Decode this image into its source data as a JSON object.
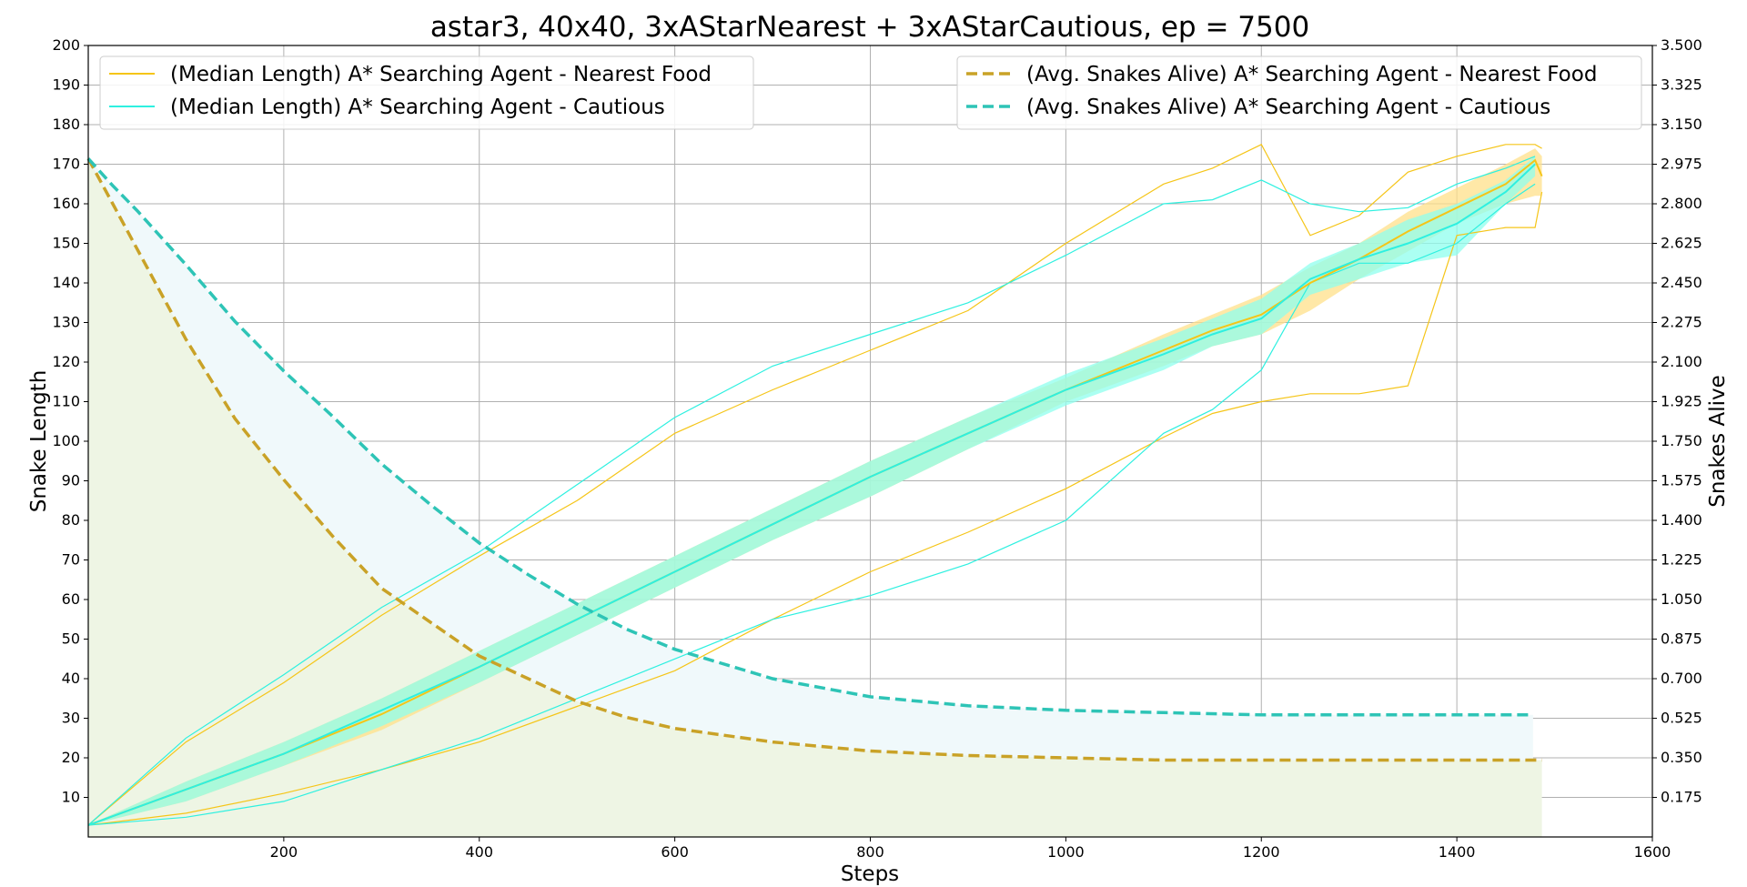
{
  "chart_data": {
    "type": "line",
    "title": "astar3, 40x40, 3xAStarNearest + 3xAStarCautious, ep = 7500",
    "xlabel": "Steps",
    "ylabel_left": "Snake Length",
    "ylabel_right": "Snakes Alive",
    "xlim": [
      0,
      1600
    ],
    "ylim_left": [
      0,
      200
    ],
    "ylim_right": [
      0,
      3.5
    ],
    "x_ticks": [
      "200",
      "400",
      "600",
      "800",
      "1000",
      "1200",
      "1400",
      "1600"
    ],
    "y_left_ticks": [
      "10",
      "20",
      "30",
      "40",
      "50",
      "60",
      "70",
      "80",
      "90",
      "100",
      "110",
      "120",
      "130",
      "140",
      "150",
      "160",
      "170",
      "180",
      "190",
      "200"
    ],
    "y_right_ticks": [
      "0.175",
      "0.350",
      "0.525",
      "0.700",
      "0.875",
      "1.050",
      "1.225",
      "1.400",
      "1.575",
      "1.750",
      "1.925",
      "2.100",
      "2.275",
      "2.450",
      "2.625",
      "2.800",
      "2.975",
      "3.150",
      "3.325",
      "3.500"
    ],
    "grid": true,
    "legend_left_position": "top-left",
    "legend_right_position": "top-right",
    "series": [
      {
        "name": "(Median Length) A* Searching Agent - Nearest Food",
        "axis": "left",
        "style": "solid",
        "color": "#f5c518",
        "band_color": "#ffe08a",
        "x": [
          0,
          100,
          200,
          300,
          400,
          500,
          600,
          700,
          800,
          900,
          1000,
          1100,
          1150,
          1200,
          1250,
          1300,
          1350,
          1400,
          1450,
          1480,
          1487
        ],
        "median": [
          3,
          12,
          21,
          31,
          43,
          55,
          67,
          79,
          91,
          102,
          113,
          123,
          128,
          132,
          140,
          146,
          153,
          159,
          165,
          171,
          167
        ],
        "q_low": [
          3,
          9,
          18,
          27,
          39,
          51,
          63,
          75,
          86,
          98,
          110,
          119,
          124,
          127,
          133,
          141,
          148,
          155,
          160,
          162,
          162
        ],
        "q_high": [
          3,
          14,
          24,
          35,
          47,
          59,
          71,
          83,
          95,
          106,
          116,
          127,
          132,
          137,
          144,
          150,
          158,
          164,
          170,
          174,
          172
        ],
        "min": [
          3,
          6,
          11,
          17,
          24,
          33,
          42,
          55,
          67,
          77,
          88,
          101,
          107,
          110,
          112,
          112,
          114,
          152,
          154,
          154,
          163
        ],
        "max": [
          3,
          24,
          39,
          56,
          71,
          85,
          102,
          113,
          123,
          133,
          150,
          165,
          169,
          175,
          152,
          157,
          168,
          172,
          175,
          175,
          174
        ]
      },
      {
        "name": "(Median Length) A* Searching Agent - Cautious",
        "axis": "left",
        "style": "solid",
        "color": "#2ef0e0",
        "band_color": "#8fffee",
        "x": [
          0,
          100,
          200,
          300,
          400,
          500,
          600,
          700,
          800,
          900,
          1000,
          1100,
          1150,
          1200,
          1250,
          1300,
          1350,
          1400,
          1450,
          1480
        ],
        "median": [
          3,
          12,
          21,
          32,
          43,
          55,
          67,
          79,
          91,
          102,
          113,
          122,
          127,
          131,
          141,
          146,
          150,
          155,
          163,
          170
        ],
        "q_low": [
          3,
          9,
          18,
          28,
          39,
          51,
          63,
          75,
          86,
          98,
          109,
          118,
          124,
          127,
          137,
          141,
          145,
          147,
          160,
          167
        ],
        "q_high": [
          3,
          14,
          24,
          35,
          47,
          59,
          71,
          83,
          95,
          106,
          117,
          126,
          131,
          136,
          145,
          150,
          156,
          160,
          166,
          172
        ],
        "min": [
          3,
          5,
          9,
          17,
          25,
          35,
          45,
          55,
          61,
          69,
          80,
          102,
          108,
          118,
          140,
          145,
          145,
          150,
          160,
          165
        ],
        "max": [
          3,
          25,
          41,
          58,
          72,
          89,
          106,
          119,
          127,
          135,
          147,
          160,
          161,
          166,
          160,
          158,
          159,
          165,
          169,
          172
        ]
      },
      {
        "name": "(Avg. Snakes Alive) A* Searching Agent - Nearest Food",
        "axis": "right",
        "style": "dashed",
        "color": "#c9a227",
        "fill_color": "#eef5e4",
        "x": [
          0,
          25,
          50,
          100,
          150,
          200,
          250,
          300,
          350,
          400,
          450,
          500,
          550,
          600,
          700,
          800,
          900,
          1000,
          1100,
          1200,
          1300,
          1400,
          1487
        ],
        "values": [
          3.0,
          2.8,
          2.6,
          2.2,
          1.85,
          1.58,
          1.33,
          1.1,
          0.95,
          0.8,
          0.7,
          0.6,
          0.53,
          0.48,
          0.42,
          0.38,
          0.36,
          0.35,
          0.34,
          0.34,
          0.34,
          0.34,
          0.34
        ]
      },
      {
        "name": "(Avg. Snakes Alive) A* Searching Agent - Cautious",
        "axis": "right",
        "style": "dashed",
        "color": "#2ec4b6",
        "fill_color": "#f0f9fb",
        "x": [
          0,
          25,
          50,
          100,
          150,
          200,
          250,
          300,
          350,
          400,
          450,
          500,
          550,
          600,
          700,
          800,
          900,
          1000,
          1100,
          1200,
          1300,
          1400,
          1478
        ],
        "values": [
          3.0,
          2.88,
          2.77,
          2.53,
          2.28,
          2.06,
          1.86,
          1.65,
          1.47,
          1.3,
          1.16,
          1.03,
          0.92,
          0.83,
          0.7,
          0.62,
          0.58,
          0.56,
          0.55,
          0.54,
          0.54,
          0.54,
          0.54
        ]
      }
    ]
  }
}
